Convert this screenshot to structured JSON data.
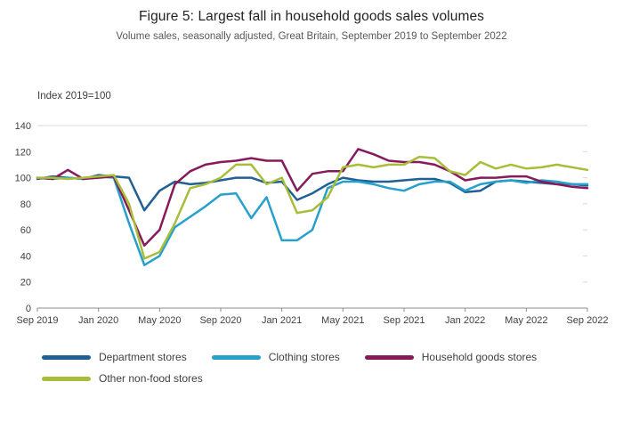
{
  "chart_data": {
    "type": "line",
    "title": "Figure 5: Largest fall in household goods sales volumes",
    "subtitle": "Volume sales, seasonally adjusted, Great Britain, September 2019 to September 2022",
    "ylabel": "Index 2019=100",
    "xlabel": "",
    "ylim": [
      0,
      140
    ],
    "yticks": [
      0,
      20,
      40,
      60,
      80,
      100,
      120,
      140
    ],
    "grid": "top gridline and baseline only, right-edge tick stubs",
    "legend_position": "bottom-left",
    "x": [
      "Sep 2019",
      "Oct 2019",
      "Nov 2019",
      "Dec 2019",
      "Jan 2020",
      "Feb 2020",
      "Mar 2020",
      "Apr 2020",
      "May 2020",
      "Jun 2020",
      "Jul 2020",
      "Aug 2020",
      "Sep 2020",
      "Oct 2020",
      "Nov 2020",
      "Dec 2020",
      "Jan 2021",
      "Feb 2021",
      "Mar 2021",
      "Apr 2021",
      "May 2021",
      "Jun 2021",
      "Jul 2021",
      "Aug 2021",
      "Sep 2021",
      "Oct 2021",
      "Nov 2021",
      "Dec 2021",
      "Jan 2022",
      "Feb 2022",
      "Mar 2022",
      "Apr 2022",
      "May 2022",
      "Jun 2022",
      "Jul 2022",
      "Aug 2022",
      "Sep 2022"
    ],
    "xtick_labels": [
      "Sep 2019",
      "Jan 2020",
      "May 2020",
      "Sep 2020",
      "Jan 2021",
      "May 2021",
      "Sep 2021",
      "Jan 2022",
      "May 2022",
      "Sep 2022"
    ],
    "xtick_indices": [
      0,
      4,
      8,
      12,
      16,
      20,
      24,
      28,
      32,
      36
    ],
    "series": [
      {
        "name": "Department stores",
        "color": "#206095",
        "values": [
          99,
          101,
          100,
          99,
          102,
          101,
          100,
          75,
          90,
          97,
          95,
          96,
          98,
          100,
          100,
          96,
          97,
          83,
          88,
          95,
          100,
          98,
          97,
          97,
          98,
          99,
          99,
          96,
          89,
          90,
          97,
          98,
          97,
          96,
          95,
          95,
          94
        ]
      },
      {
        "name": "Clothing stores",
        "color": "#27A0CC",
        "values": [
          100,
          99,
          100,
          99,
          101,
          100,
          65,
          33,
          40,
          62,
          70,
          78,
          87,
          88,
          69,
          85,
          52,
          52,
          60,
          92,
          97,
          97,
          95,
          92,
          90,
          95,
          97,
          97,
          90,
          95,
          97,
          98,
          96,
          98,
          97,
          95,
          95
        ]
      },
      {
        "name": "Household goods stores",
        "color": "#871A5B",
        "values": [
          100,
          99,
          106,
          99,
          100,
          101,
          75,
          48,
          60,
          95,
          105,
          110,
          112,
          113,
          115,
          113,
          113,
          90,
          103,
          105,
          105,
          122,
          118,
          113,
          112,
          112,
          110,
          105,
          98,
          100,
          100,
          101,
          101,
          97,
          95,
          93,
          92
        ]
      },
      {
        "name": "Other non-food stores",
        "color": "#A8BD3A",
        "values": [
          100,
          100,
          99,
          100,
          101,
          102,
          80,
          38,
          43,
          65,
          92,
          95,
          100,
          110,
          110,
          95,
          100,
          73,
          75,
          85,
          108,
          110,
          108,
          110,
          110,
          116,
          115,
          105,
          102,
          112,
          107,
          110,
          107,
          108,
          110,
          108,
          106
        ]
      }
    ]
  }
}
